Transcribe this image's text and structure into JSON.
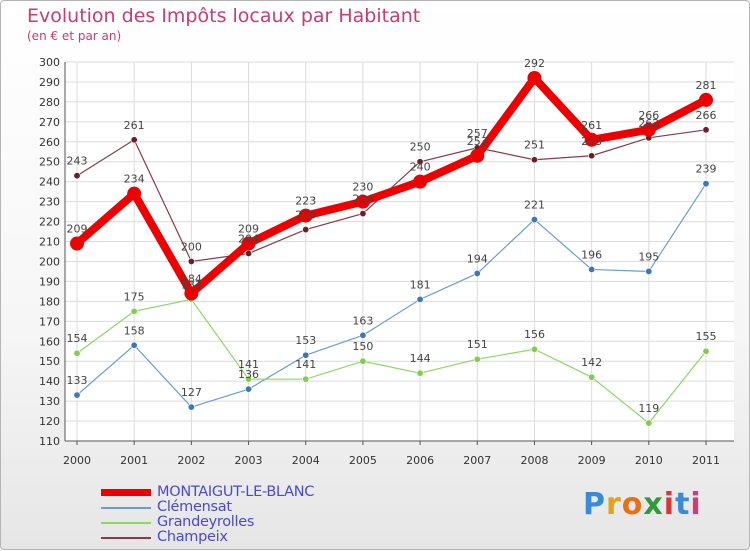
{
  "header": {
    "title": "Evolution des Impôts locaux par Habitant",
    "subtitle": "(en € et par an)"
  },
  "brand": {
    "letters": [
      "P",
      "r",
      "o",
      "x",
      "i",
      "t",
      "i"
    ]
  },
  "chart_data": {
    "type": "line",
    "title": "Evolution des Impôts locaux par Habitant",
    "subtitle": "(en € et par an)",
    "x": [
      "2000",
      "2001",
      "2002",
      "2003",
      "2004",
      "2005",
      "2006",
      "2007",
      "2008",
      "2009",
      "2010",
      "2011"
    ],
    "ylim": [
      110,
      300
    ],
    "yticks": [
      110,
      120,
      130,
      140,
      150,
      160,
      170,
      180,
      190,
      200,
      210,
      220,
      230,
      240,
      250,
      260,
      270,
      280,
      290,
      300
    ],
    "grid": true,
    "legend_position": "bottom-left",
    "series": [
      {
        "name": "MONTAIGUT-LE-BLANC",
        "color": "#ee0000",
        "emphasis": true,
        "values": [
          209,
          234,
          184,
          209,
          223,
          230,
          240,
          253,
          292,
          261,
          266,
          281
        ]
      },
      {
        "name": "Clémensat",
        "color": "#6b9ecf",
        "point_color": "#3a78b8",
        "values": [
          133,
          158,
          127,
          136,
          153,
          163,
          181,
          194,
          221,
          196,
          195,
          239
        ]
      },
      {
        "name": "Grandeyrolles",
        "color": "#8cd860",
        "point_color": "#7fcf4a",
        "values": [
          154,
          175,
          181,
          141,
          141,
          150,
          144,
          151,
          156,
          142,
          119,
          155
        ]
      },
      {
        "name": "Champeix",
        "color": "#8a3a48",
        "point_color": "#6b1e2a",
        "values": [
          243,
          261,
          200,
          204,
          216,
          224,
          250,
          257,
          251,
          253,
          262,
          266
        ]
      }
    ]
  }
}
